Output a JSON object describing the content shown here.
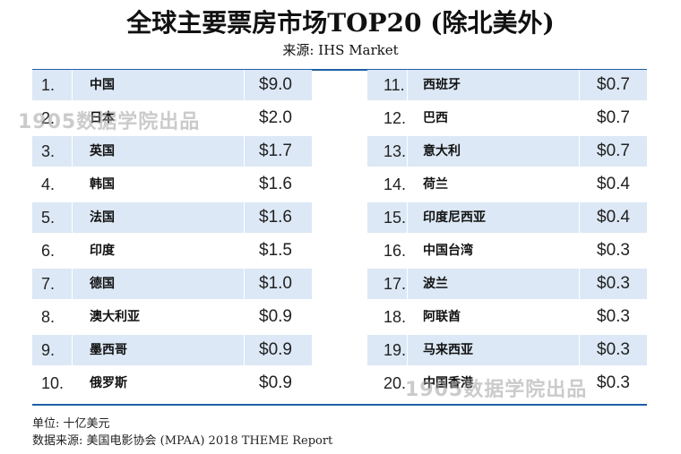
{
  "title": "全球主要票房市场TOP20 (除北美外)",
  "subtitle": "来源: IHS  Market",
  "rows": [
    {
      "left": {
        "rank": "1.",
        "name": "中国",
        "value": "$9.0"
      },
      "right": {
        "rank": "11.",
        "name": "西班牙",
        "value": "$0.7"
      }
    },
    {
      "left": {
        "rank": "2.",
        "name": "日本",
        "value": "$2.0"
      },
      "right": {
        "rank": "12.",
        "name": "巴西",
        "value": "$0.7"
      }
    },
    {
      "left": {
        "rank": "3.",
        "name": "英国",
        "value": "$1.7"
      },
      "right": {
        "rank": "13.",
        "name": "意大利",
        "value": "$0.7"
      }
    },
    {
      "left": {
        "rank": "4.",
        "name": "韩国",
        "value": "$1.6"
      },
      "right": {
        "rank": "14.",
        "name": "荷兰",
        "value": "$0.4"
      }
    },
    {
      "left": {
        "rank": "5.",
        "name": "法国",
        "value": "$1.6"
      },
      "right": {
        "rank": "15.",
        "name": "印度尼西亚",
        "value": "$0.4"
      }
    },
    {
      "left": {
        "rank": "6.",
        "name": "印度",
        "value": "$1.5"
      },
      "right": {
        "rank": "16.",
        "name": "中国台湾",
        "value": "$0.3"
      }
    },
    {
      "left": {
        "rank": "7.",
        "name": "德国",
        "value": "$1.0"
      },
      "right": {
        "rank": "17.",
        "name": "波兰",
        "value": "$0.3"
      }
    },
    {
      "left": {
        "rank": "8.",
        "name": "澳大利亚",
        "value": "$0.9"
      },
      "right": {
        "rank": "18.",
        "name": "阿联酋",
        "value": "$0.3"
      }
    },
    {
      "left": {
        "rank": "9.",
        "name": "墨西哥",
        "value": "$0.9"
      },
      "right": {
        "rank": "19.",
        "name": "马来西亚",
        "value": "$0.3"
      }
    },
    {
      "left": {
        "rank": "10.",
        "name": "俄罗斯",
        "value": "$0.9"
      },
      "right": {
        "rank": "20.",
        "name": "中国香港",
        "value": "$0.3"
      }
    }
  ],
  "watermark": "1905数据学院出品",
  "footer": {
    "unit": "单位: 十亿美元",
    "source": "数据来源: 美国电影协会 (MPAA) 2018 THEME Report"
  },
  "colors": {
    "accent": "#1f5fa6",
    "shade": "#dce8f5"
  }
}
